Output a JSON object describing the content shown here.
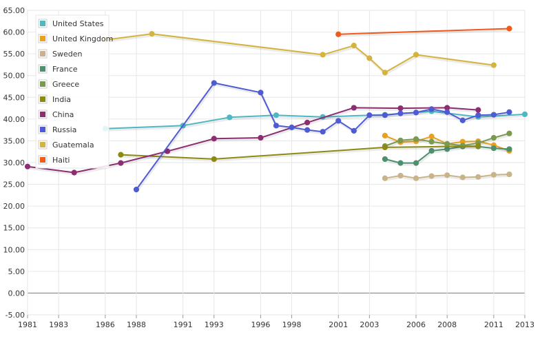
{
  "chart_data": {
    "type": "line",
    "ylim": [
      -5,
      65
    ],
    "y_ticks": [
      "-5.00",
      "0.00",
      "5.00",
      "10.00",
      "15.00",
      "20.00",
      "25.00",
      "30.00",
      "35.00",
      "40.00",
      "45.00",
      "50.00",
      "55.00",
      "60.00",
      "65.00"
    ],
    "xlim": [
      1981,
      2013
    ],
    "x_ticks": [
      "1981",
      "1983",
      "1986",
      "1988",
      "1991",
      "1993",
      "1996",
      "1998",
      "2001",
      "2003",
      "2006",
      "2008",
      "2011",
      "2013"
    ],
    "grid": true,
    "legend_position": "top-left",
    "series": [
      {
        "name": "United States",
        "color": "#4db8c4",
        "points": [
          [
            1986,
            37.8
          ],
          [
            1991,
            38.5
          ],
          [
            1994,
            40.4
          ],
          [
            1997,
            40.9
          ],
          [
            2000,
            40.5
          ],
          [
            2004,
            41.0
          ],
          [
            2007,
            41.8
          ],
          [
            2010,
            40.5
          ],
          [
            2013,
            41.1
          ]
        ]
      },
      {
        "name": "United Kingdom",
        "color": "#e8a020",
        "points": [
          [
            2004,
            36.2
          ],
          [
            2005,
            34.7
          ],
          [
            2006,
            34.9
          ],
          [
            2007,
            36.0
          ],
          [
            2008,
            34.3
          ],
          [
            2009,
            34.8
          ],
          [
            2010,
            34.9
          ],
          [
            2011,
            34.0
          ],
          [
            2012,
            32.7
          ]
        ]
      },
      {
        "name": "Sweden",
        "color": "#c9b48a",
        "points": [
          [
            2004,
            26.4
          ],
          [
            2005,
            27.0
          ],
          [
            2006,
            26.4
          ],
          [
            2007,
            26.9
          ],
          [
            2008,
            27.1
          ],
          [
            2009,
            26.6
          ],
          [
            2010,
            26.7
          ],
          [
            2011,
            27.2
          ],
          [
            2012,
            27.3
          ]
        ]
      },
      {
        "name": "France",
        "color": "#4e8f6e",
        "points": [
          [
            2004,
            30.8
          ],
          [
            2005,
            29.9
          ],
          [
            2006,
            29.9
          ],
          [
            2007,
            32.7
          ],
          [
            2008,
            33.1
          ],
          [
            2009,
            33.7
          ],
          [
            2010,
            33.7
          ],
          [
            2011,
            33.3
          ],
          [
            2012,
            33.1
          ]
        ]
      },
      {
        "name": "Greece",
        "color": "#7a9a50",
        "points": [
          [
            2004,
            33.8
          ],
          [
            2005,
            35.1
          ],
          [
            2006,
            35.4
          ],
          [
            2007,
            34.8
          ],
          [
            2008,
            34.3
          ],
          [
            2009,
            33.9
          ],
          [
            2010,
            34.5
          ],
          [
            2011,
            35.7
          ],
          [
            2012,
            36.7
          ]
        ]
      },
      {
        "name": "India",
        "color": "#8d8a12",
        "points": [
          [
            1987,
            31.8
          ],
          [
            1993,
            30.8
          ],
          [
            2004,
            33.5
          ],
          [
            2010,
            33.8
          ]
        ]
      },
      {
        "name": "China",
        "color": "#8b2e72",
        "points": [
          [
            1981,
            29.1
          ],
          [
            1984,
            27.7
          ],
          [
            1987,
            29.9
          ],
          [
            1990,
            32.6
          ],
          [
            1993,
            35.5
          ],
          [
            1996,
            35.7
          ],
          [
            1999,
            39.2
          ],
          [
            2002,
            42.6
          ],
          [
            2005,
            42.5
          ],
          [
            2008,
            42.6
          ],
          [
            2010,
            42.1
          ]
        ]
      },
      {
        "name": "Russia",
        "color": "#4e5bd4",
        "points": [
          [
            1988,
            23.8
          ],
          [
            1993,
            48.3
          ],
          [
            1996,
            46.1
          ],
          [
            1997,
            38.5
          ],
          [
            1998,
            38.1
          ],
          [
            1999,
            37.5
          ],
          [
            2000,
            37.1
          ],
          [
            2001,
            39.6
          ],
          [
            2002,
            37.3
          ],
          [
            2003,
            40.9
          ],
          [
            2004,
            40.9
          ],
          [
            2005,
            41.3
          ],
          [
            2006,
            41.5
          ],
          [
            2007,
            42.3
          ],
          [
            2008,
            41.6
          ],
          [
            2009,
            39.7
          ],
          [
            2010,
            40.9
          ],
          [
            2011,
            41.0
          ],
          [
            2012,
            41.6
          ]
        ]
      },
      {
        "name": "Guatemala",
        "color": "#d4b43c",
        "points": [
          [
            1986,
            58.2
          ],
          [
            1989,
            59.6
          ],
          [
            2000,
            54.8
          ],
          [
            2002,
            56.9
          ],
          [
            2003,
            54.0
          ],
          [
            2004,
            50.7
          ],
          [
            2006,
            54.8
          ],
          [
            2011,
            52.4
          ]
        ]
      },
      {
        "name": "Haiti",
        "color": "#f05a1a",
        "points": [
          [
            2001,
            59.5
          ],
          [
            2012,
            60.8
          ]
        ]
      }
    ]
  }
}
